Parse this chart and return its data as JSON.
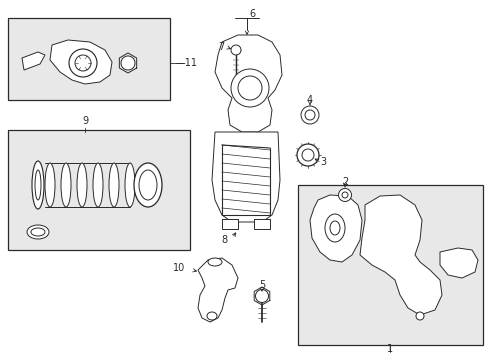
{
  "bg_color": "#ffffff",
  "line_color": "#2a2a2a",
  "box_fill": "#e8e8e8",
  "figsize": [
    4.89,
    3.6
  ],
  "dpi": 100
}
